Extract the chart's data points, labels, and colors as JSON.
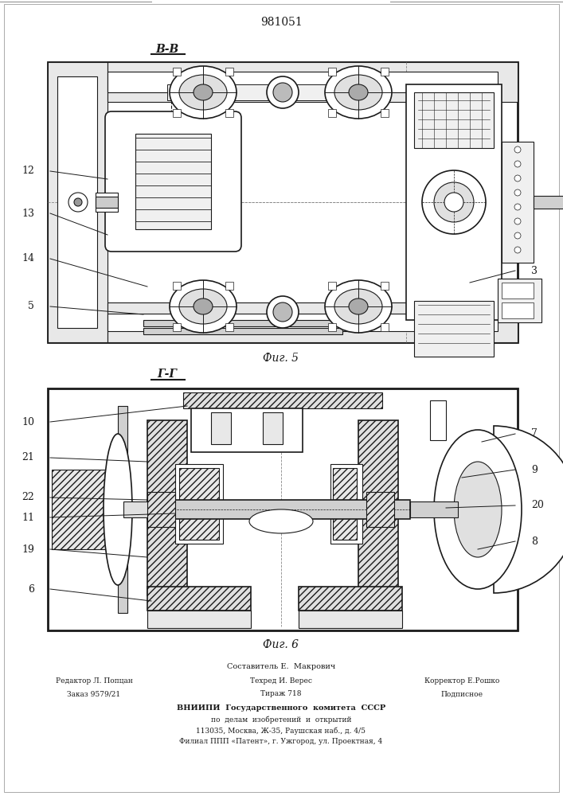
{
  "patent_number": "981051",
  "fig5_label": "В-В",
  "fig5_caption": "Фиг. 5",
  "fig6_label": "Г-Г",
  "fig6_caption": "Фиг. 6",
  "bg_color": "#ffffff",
  "line_color": "#1a1a1a",
  "footer_lines": [
    "Составитель Е.  Макрович",
    "Техред И. Верес",
    "Корректор Е.Рошко",
    "Редактор Л. Попцан",
    "Заказ 9579/21",
    "Тираж 718",
    "Подписное",
    "ВНИИПИ  Государственного  комитета  СССР",
    "по  делам  изобретений  и  открытий",
    "113035, Москва, Ж-35, Раушская наб., д. 4/5",
    "Филиал ППП «Патент», г. Ужгород, ул. Проектная, 4"
  ]
}
